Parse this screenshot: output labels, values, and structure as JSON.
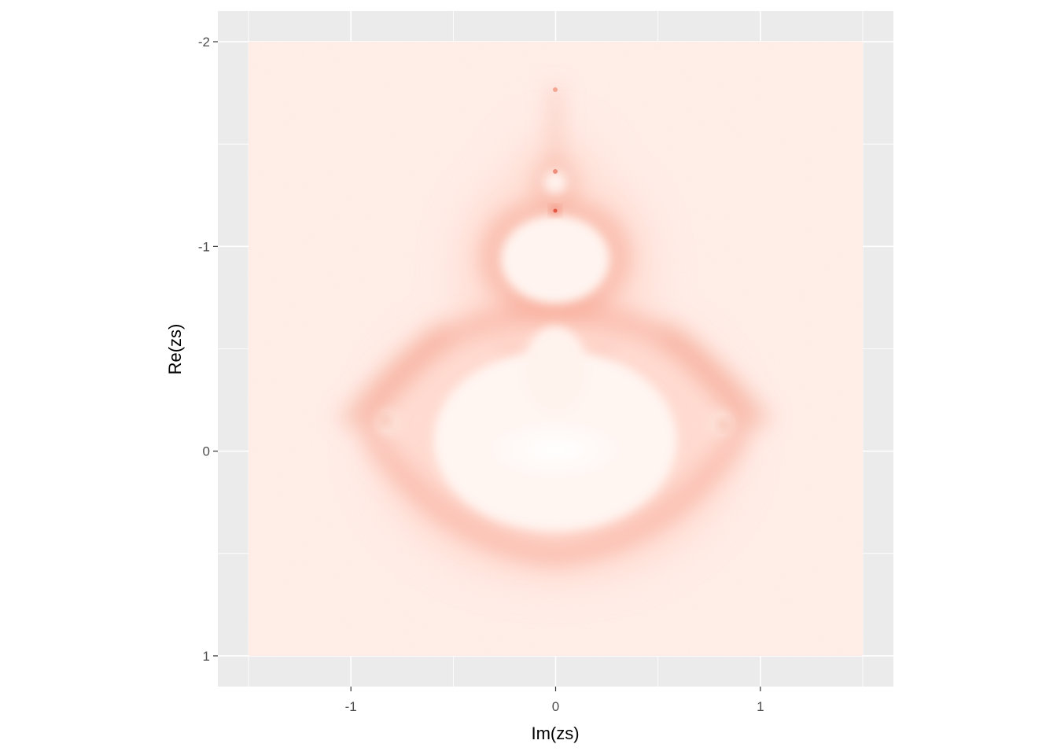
{
  "chart_data": {
    "type": "heatmap",
    "title": "",
    "xlabel": "Im(zs)",
    "ylabel": "Re(zs)",
    "x_ticks": [
      -1,
      0,
      1
    ],
    "x_tick_labels": [
      "-1",
      "0",
      "1"
    ],
    "y_ticks": [
      -2,
      -1,
      0,
      1
    ],
    "y_tick_labels": [
      "-2",
      "-1",
      "0",
      "1"
    ],
    "xlim": [
      -1.65,
      1.65
    ],
    "ylim": [
      -2.15,
      1.15
    ],
    "y_reversed": true,
    "grid": true,
    "raster_extent": {
      "x": [
        -1.5,
        1.5
      ],
      "y": [
        -2.0,
        1.0
      ]
    },
    "fill_scale": {
      "low": "#fff5f0",
      "high": "#e0301e"
    },
    "description_features": [
      {
        "name": "main-cardioid",
        "x": 0.0,
        "y": -0.3
      },
      {
        "name": "period-2-bulb",
        "x": 0.0,
        "y": -1.0
      },
      {
        "name": "small-bulb",
        "x": 0.0,
        "y": -1.35
      },
      {
        "name": "antenna-tip",
        "x": 0.0,
        "y": -1.75
      }
    ]
  },
  "colors": {
    "panel_background": "#ebebeb",
    "grid_major": "#ffffff",
    "raster_base": "#fff1ec",
    "density_accent": "#f06a50"
  }
}
